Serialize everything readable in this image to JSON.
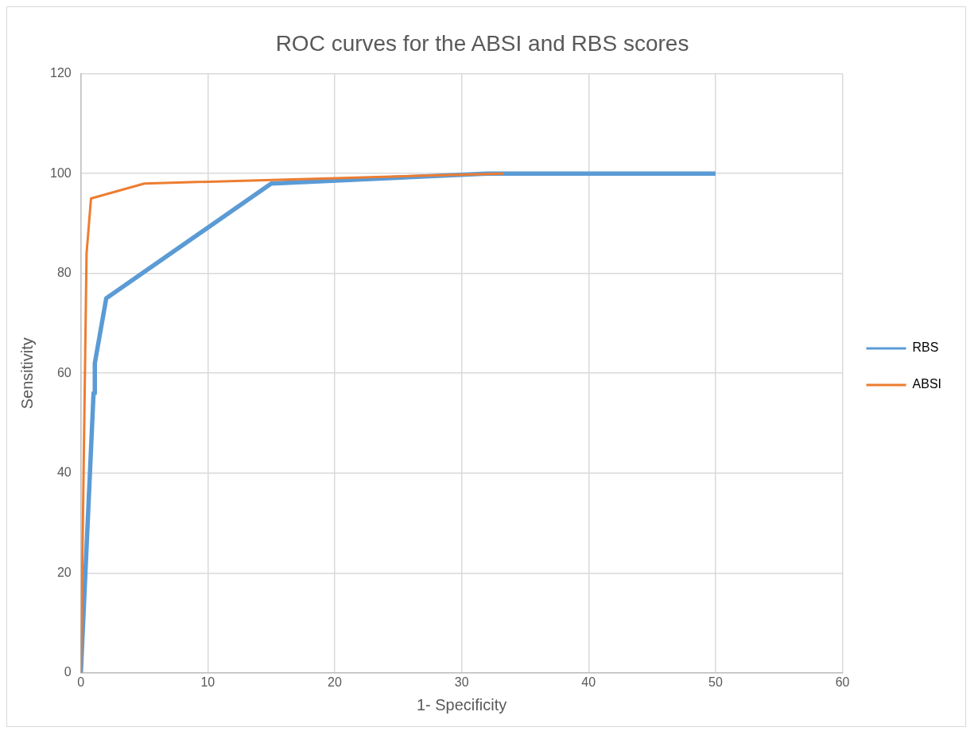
{
  "chart_data": {
    "type": "line",
    "title": "ROC curves for the ABSI and RBS scores",
    "xlabel": "1- Specificity",
    "ylabel": "Sensitivity",
    "xlim": [
      0,
      60
    ],
    "xticks": [
      0,
      10,
      20,
      30,
      40,
      50,
      60
    ],
    "ylim": [
      0,
      120
    ],
    "yticks": [
      0,
      20,
      40,
      60,
      80,
      100,
      120
    ],
    "grid": true,
    "legend": "right",
    "marker": "none",
    "series": [
      {
        "name": "RBS",
        "color": "#5b9bd5",
        "x": [
          0,
          1,
          1.1,
          1.1,
          2,
          15,
          32,
          50
        ],
        "values": [
          0,
          56,
          56,
          62,
          75,
          98,
          100,
          100
        ]
      },
      {
        "name": "ABSI",
        "color": "#ed7d31",
        "x": [
          0,
          0.45,
          0.8,
          5,
          33.3
        ],
        "values": [
          0,
          84,
          95,
          98,
          100
        ]
      }
    ]
  }
}
